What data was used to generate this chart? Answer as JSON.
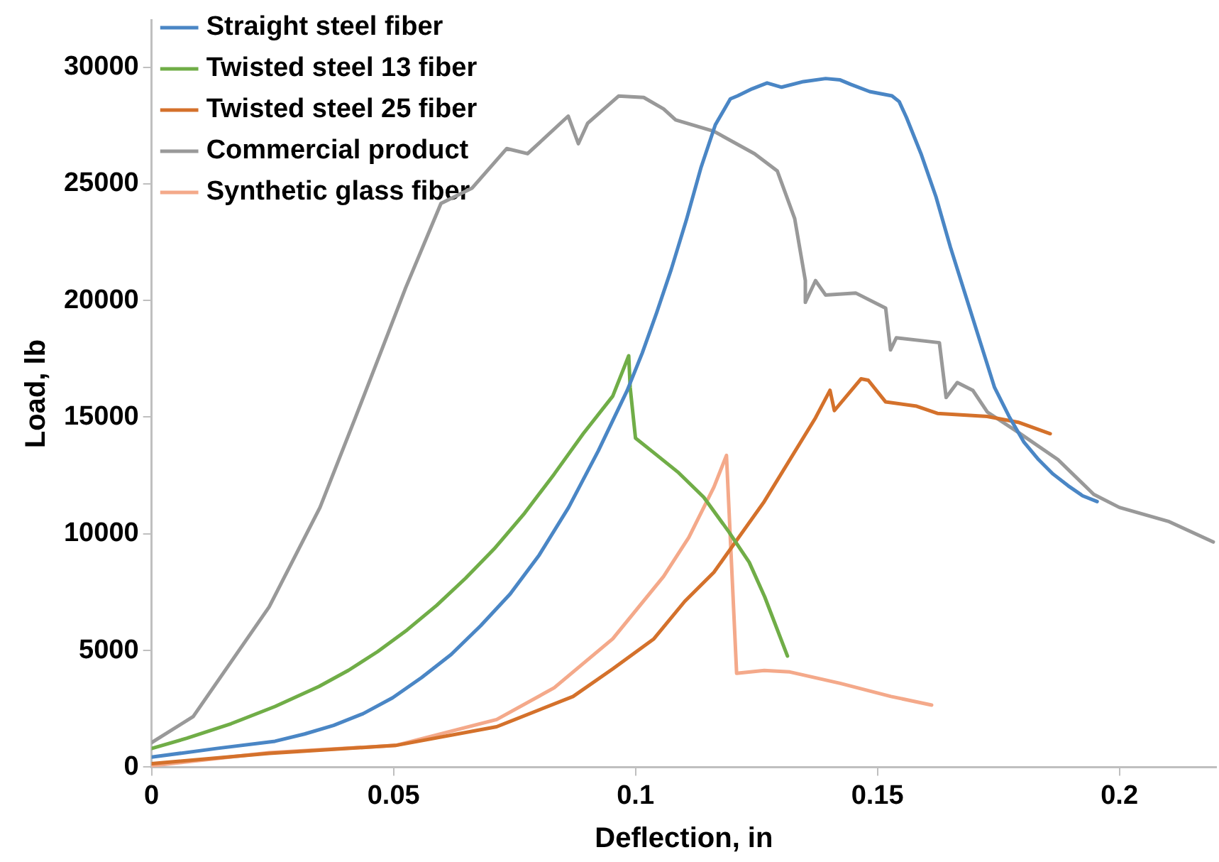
{
  "chart_data": {
    "type": "line",
    "xlabel": "Deflection, in",
    "ylabel": "Load, lb",
    "xlim": [
      0,
      0.22
    ],
    "xticks": [
      0,
      0.05,
      0.1,
      0.15,
      0.2
    ],
    "ylim": [
      0,
      32000
    ],
    "yticks": [
      0,
      5000,
      10000,
      15000,
      20000,
      25000,
      30000
    ],
    "grid": false,
    "legend": "top left",
    "line_style": "solid",
    "series": [
      {
        "name": "Straight steel fiber",
        "color": "#4a86c5",
        "x": [
          0,
          0.0134,
          0.0255,
          0.0316,
          0.0376,
          0.0437,
          0.0498,
          0.0558,
          0.0619,
          0.068,
          0.0741,
          0.0801,
          0.0862,
          0.0923,
          0.0983,
          0.1014,
          0.1044,
          0.1074,
          0.1105,
          0.1135,
          0.1165,
          0.1196,
          0.1211,
          0.1241,
          0.1272,
          0.1302,
          0.1347,
          0.1393,
          0.1423,
          0.1445,
          0.1484,
          0.153,
          0.1545,
          0.156,
          0.159,
          0.1621,
          0.1651,
          0.1681,
          0.1712,
          0.1742,
          0.1772,
          0.1803,
          0.1833,
          0.1863,
          0.1894,
          0.1924,
          0.1954
        ],
        "values": [
          430,
          800,
          1110,
          1420,
          1790,
          2290,
          2970,
          3840,
          4830,
          6060,
          7420,
          9090,
          11140,
          13550,
          16150,
          17750,
          19490,
          21340,
          23440,
          25670,
          27530,
          28640,
          28770,
          29070,
          29320,
          29140,
          29380,
          29510,
          29450,
          29260,
          28950,
          28770,
          28520,
          27840,
          26290,
          24440,
          22270,
          20290,
          18250,
          16270,
          15030,
          13920,
          13180,
          12560,
          12060,
          11630,
          11380
        ]
      },
      {
        "name": "Twisted steel 13 fiber",
        "color": "#70ad47",
        "x": [
          0,
          0.0073,
          0.0164,
          0.0255,
          0.0346,
          0.0407,
          0.0467,
          0.0528,
          0.0589,
          0.0649,
          0.071,
          0.0771,
          0.0832,
          0.0892,
          0.0953,
          0.0986,
          0.0989,
          0.1,
          0.1037,
          0.1089,
          0.1141,
          0.1193,
          0.1235,
          0.1267,
          0.1314
        ],
        "values": [
          800,
          1240,
          1860,
          2600,
          3460,
          4150,
          4950,
          5880,
          6930,
          8100,
          9400,
          10890,
          12560,
          14290,
          15900,
          17630,
          16270,
          14100,
          13490,
          12620,
          11570,
          10080,
          8780,
          7300,
          4760
        ]
      },
      {
        "name": "Twisted steel 25 fiber",
        "color": "#d4712b",
        "x": [
          0,
          0.0243,
          0.0504,
          0.0713,
          0.0871,
          0.0953,
          0.1038,
          0.1102,
          0.1162,
          0.1266,
          0.1372,
          0.1402,
          0.1411,
          0.1466,
          0.1481,
          0.1517,
          0.1581,
          0.1624,
          0.1727,
          0.1791,
          0.1857
        ],
        "values": [
          150,
          590,
          930,
          1730,
          3030,
          4210,
          5500,
          7110,
          8350,
          11380,
          14970,
          16150,
          15280,
          16640,
          16580,
          15650,
          15470,
          15160,
          15030,
          14780,
          14290
        ]
      },
      {
        "name": "Commercial product",
        "color": "#999999",
        "x": [
          0,
          0.0086,
          0.0243,
          0.0348,
          0.0421,
          0.0473,
          0.0525,
          0.0598,
          0.0662,
          0.0734,
          0.0777,
          0.0861,
          0.0882,
          0.0901,
          0.0965,
          0.1017,
          0.1058,
          0.1083,
          0.1162,
          0.1246,
          0.1293,
          0.1329,
          0.1351,
          0.1351,
          0.1372,
          0.1393,
          0.1455,
          0.1517,
          0.1527,
          0.1539,
          0.1628,
          0.1642,
          0.1665,
          0.1697,
          0.1727,
          0.1791,
          0.1873,
          0.1947,
          0.2,
          0.2103,
          0.2194
        ],
        "values": [
          1050,
          2170,
          6870,
          11130,
          14970,
          17750,
          20540,
          24160,
          24810,
          26510,
          26290,
          27900,
          26720,
          27590,
          28760,
          28700,
          28210,
          27740,
          27250,
          26290,
          25550,
          23510,
          20850,
          19920,
          20850,
          20230,
          20320,
          19670,
          17880,
          18400,
          18190,
          15840,
          16480,
          16150,
          15220,
          14350,
          13180,
          11690,
          11130,
          10520,
          9650
        ]
      },
      {
        "name": "Synthetic glass fiber",
        "color": "#f4a98a",
        "x": [
          0,
          0.0243,
          0.0504,
          0.0713,
          0.0832,
          0.0953,
          0.1058,
          0.111,
          0.1162,
          0.1188,
          0.1209,
          0.1266,
          0.1319,
          0.1423,
          0.1528,
          0.1612
        ],
        "values": [
          60,
          620,
          930,
          2040,
          3400,
          5500,
          8170,
          9840,
          12000,
          13360,
          4020,
          4140,
          4080,
          3590,
          3030,
          2660
        ]
      }
    ]
  }
}
